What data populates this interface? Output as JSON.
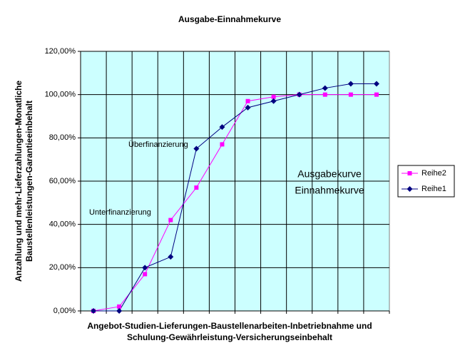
{
  "chart_data": {
    "type": "line",
    "title": "Ausgabe-Einnahmekurve",
    "y_label": [
      "Anzahlung und mehr-Lieferzahlungen-Monatliche",
      "Baustellenleistungen-Garantieeinbehalt"
    ],
    "x_label": [
      "Angebot-Studien-Lieferungen-Baustellenarbeiten-Inbetriebnahme und",
      "Schulung-Gewährleistung-Versicherungseinbehalt"
    ],
    "categories": [
      null,
      null,
      null,
      null,
      null,
      null,
      null,
      null,
      null,
      null,
      null,
      null
    ],
    "series": [
      {
        "name": "Reihe2",
        "color": "#ff00ff",
        "marker": "square",
        "values": [
          0,
          2,
          17,
          42,
          57,
          77,
          97,
          99,
          100,
          100,
          100,
          100
        ]
      },
      {
        "name": "Reihe1",
        "color": "#000080",
        "marker": "diamond",
        "values": [
          0,
          0,
          20,
          25,
          75,
          85,
          94,
          97,
          100,
          103,
          105,
          105
        ]
      }
    ],
    "ylim": [
      0,
      120
    ],
    "yticks": [
      {
        "value": 0,
        "label": "0,00%"
      },
      {
        "value": 20,
        "label": "20,00%"
      },
      {
        "value": 40,
        "label": "40,00%"
      },
      {
        "value": 60,
        "label": "60,00%"
      },
      {
        "value": 80,
        "label": "80,00%"
      },
      {
        "value": 100,
        "label": "100,00%"
      },
      {
        "value": 120,
        "label": "120,00%"
      }
    ],
    "grid": true,
    "plot_background": "#ccffff",
    "legend": "right",
    "annotations": [
      "Überfinanzierung",
      "Unterfinanzierung",
      "Ausgabekurve",
      "Einnahmekurve"
    ]
  }
}
